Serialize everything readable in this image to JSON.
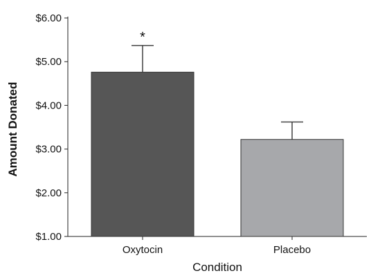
{
  "chart_data": {
    "type": "bar",
    "title": "",
    "xlabel": "Condition",
    "ylabel": "Amount Donated",
    "categories": [
      "Oxytocin",
      "Placebo"
    ],
    "values": [
      4.76,
      3.22
    ],
    "error_upper": [
      5.37,
      3.62
    ],
    "ylim": [
      1.0,
      6.0
    ],
    "yticks": [
      1.0,
      2.0,
      3.0,
      4.0,
      5.0,
      6.0
    ],
    "ytick_labels": [
      "$1.00",
      "$2.00",
      "$3.00",
      "$4.00",
      "$5.00",
      "$6.00"
    ],
    "bar_colors": [
      "#565656",
      "#a7a8ab"
    ],
    "annotations": [
      {
        "category": "Oxytocin",
        "text": "*"
      }
    ],
    "grid": false,
    "legend": "none"
  }
}
